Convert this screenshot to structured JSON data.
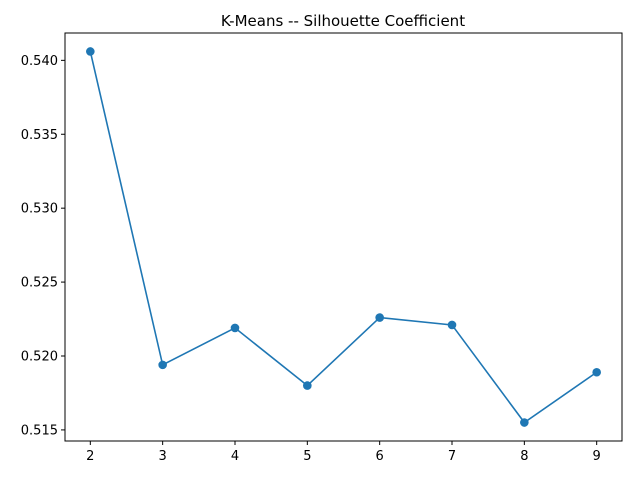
{
  "chart_data": {
    "type": "line",
    "title": "K-Means -- Silhouette Coefficient",
    "xlabel": "",
    "ylabel": "",
    "x": [
      2,
      3,
      4,
      5,
      6,
      7,
      8,
      9
    ],
    "series": [
      {
        "values": [
          0.5406,
          0.5194,
          0.5219,
          0.518,
          0.5226,
          0.5221,
          0.5155,
          0.5189
        ]
      }
    ],
    "xticks": [
      "2",
      "3",
      "4",
      "5",
      "6",
      "7",
      "8",
      "9"
    ],
    "yticks": [
      "0.515",
      "0.520",
      "0.525",
      "0.530",
      "0.535",
      "0.540"
    ],
    "xlim": [
      1.65,
      9.35
    ],
    "ylim": [
      0.51425,
      0.54185
    ],
    "grid": false,
    "markers": true,
    "color": "#1f77b4"
  }
}
